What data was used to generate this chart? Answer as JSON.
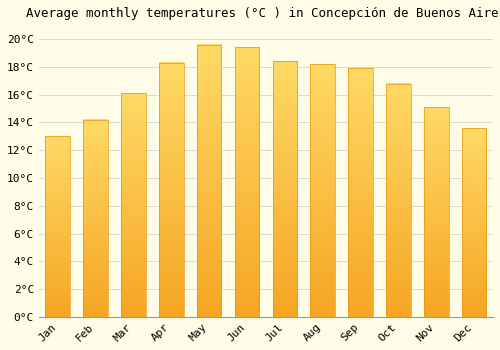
{
  "title": "Average monthly temperatures (°C ) in Concepción de Buenos Aires",
  "months": [
    "Jan",
    "Feb",
    "Mar",
    "Apr",
    "May",
    "Jun",
    "Jul",
    "Aug",
    "Sep",
    "Oct",
    "Nov",
    "Dec"
  ],
  "values": [
    13.0,
    14.2,
    16.1,
    18.3,
    19.6,
    19.4,
    18.4,
    18.2,
    17.9,
    16.8,
    15.1,
    13.6
  ],
  "bar_color_bottom": "#F5A623",
  "bar_color_top": "#FFD966",
  "background_color": "#FFFCE8",
  "grid_color": "#CCCCCC",
  "ylim": [
    0,
    21
  ],
  "yticks": [
    0,
    2,
    4,
    6,
    8,
    10,
    12,
    14,
    16,
    18,
    20
  ],
  "title_fontsize": 9,
  "tick_fontsize": 8,
  "font_family": "monospace",
  "bar_width": 0.65
}
